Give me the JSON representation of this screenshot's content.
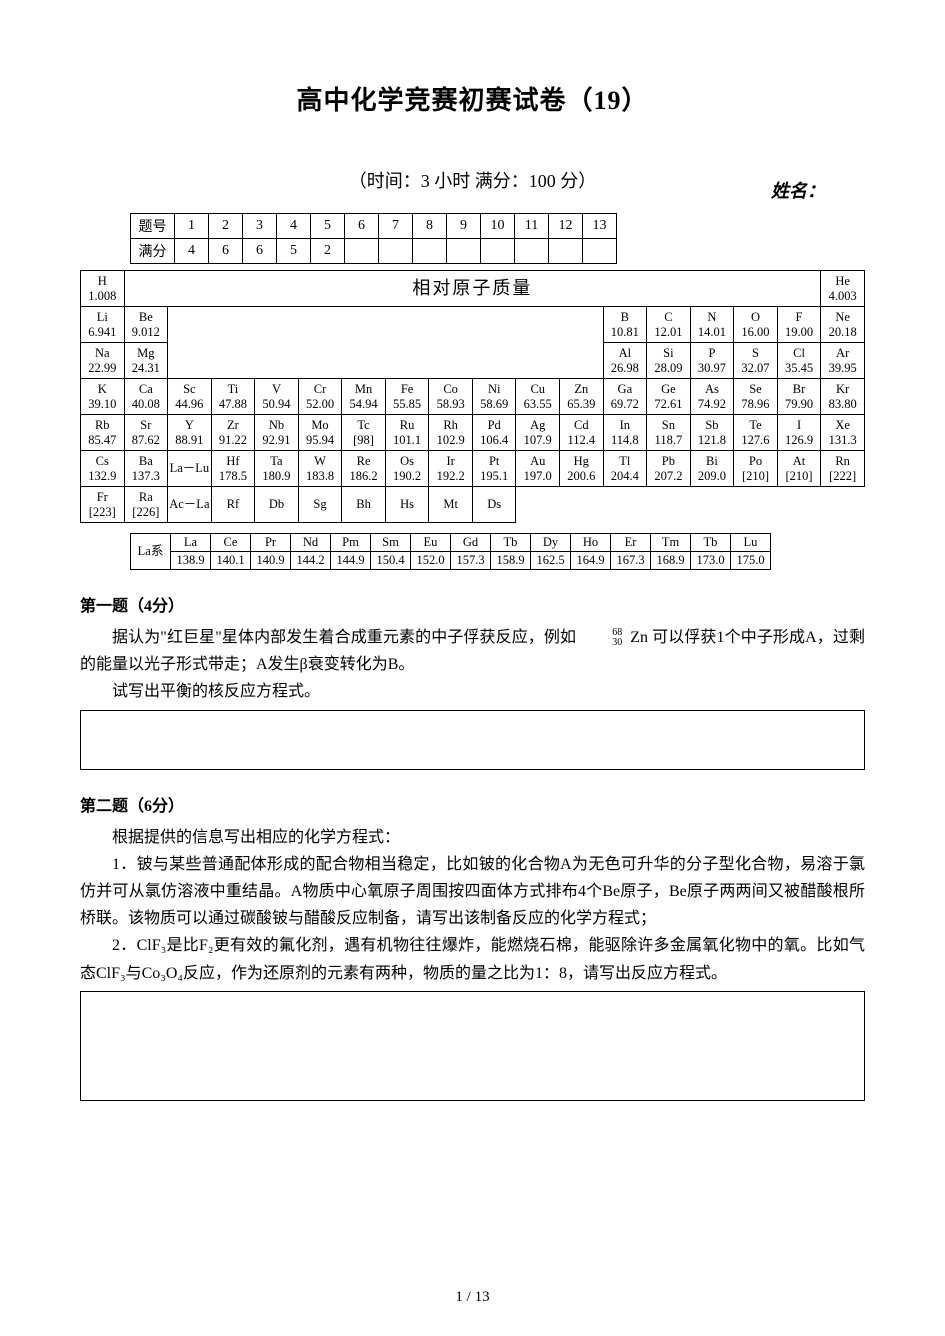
{
  "title": "高中化学竞赛初赛试卷（19）",
  "subtitle": "（时间：3 小时  满分：100 分）",
  "name_label": "姓名：",
  "score_table": {
    "row1_label": "题号",
    "row2_label": "满分",
    "nums": [
      "1",
      "2",
      "3",
      "4",
      "5",
      "6",
      "7",
      "8",
      "9",
      "10",
      "11",
      "12",
      "13"
    ],
    "vals": [
      "4",
      "6",
      "6",
      "5",
      "2",
      "",
      "",
      "",
      "",
      "",
      "",
      "",
      ""
    ]
  },
  "pt_title": "相对原子质量",
  "periodic": {
    "row1": [
      {
        "sym": "H",
        "mass": "1.008"
      },
      null,
      null,
      null,
      null,
      null,
      null,
      null,
      null,
      null,
      null,
      null,
      null,
      null,
      null,
      null,
      null,
      {
        "sym": "He",
        "mass": "4.003"
      }
    ],
    "row2": [
      {
        "sym": "Li",
        "mass": "6.941"
      },
      {
        "sym": "Be",
        "mass": "9.012"
      },
      null,
      null,
      null,
      null,
      null,
      null,
      null,
      null,
      null,
      null,
      {
        "sym": "B",
        "mass": "10.81"
      },
      {
        "sym": "C",
        "mass": "12.01"
      },
      {
        "sym": "N",
        "mass": "14.01"
      },
      {
        "sym": "O",
        "mass": "16.00"
      },
      {
        "sym": "F",
        "mass": "19.00"
      },
      {
        "sym": "Ne",
        "mass": "20.18"
      }
    ],
    "row3": [
      {
        "sym": "Na",
        "mass": "22.99"
      },
      {
        "sym": "Mg",
        "mass": "24.31"
      },
      null,
      null,
      null,
      null,
      null,
      null,
      null,
      null,
      null,
      null,
      {
        "sym": "Al",
        "mass": "26.98"
      },
      {
        "sym": "Si",
        "mass": "28.09"
      },
      {
        "sym": "P",
        "mass": "30.97"
      },
      {
        "sym": "S",
        "mass": "32.07"
      },
      {
        "sym": "Cl",
        "mass": "35.45"
      },
      {
        "sym": "Ar",
        "mass": "39.95"
      }
    ],
    "row4": [
      {
        "sym": "K",
        "mass": "39.10"
      },
      {
        "sym": "Ca",
        "mass": "40.08"
      },
      {
        "sym": "Sc",
        "mass": "44.96"
      },
      {
        "sym": "Ti",
        "mass": "47.88"
      },
      {
        "sym": "V",
        "mass": "50.94"
      },
      {
        "sym": "Cr",
        "mass": "52.00"
      },
      {
        "sym": "Mn",
        "mass": "54.94"
      },
      {
        "sym": "Fe",
        "mass": "55.85"
      },
      {
        "sym": "Co",
        "mass": "58.93"
      },
      {
        "sym": "Ni",
        "mass": "58.69"
      },
      {
        "sym": "Cu",
        "mass": "63.55"
      },
      {
        "sym": "Zn",
        "mass": "65.39"
      },
      {
        "sym": "Ga",
        "mass": "69.72"
      },
      {
        "sym": "Ge",
        "mass": "72.61"
      },
      {
        "sym": "As",
        "mass": "74.92"
      },
      {
        "sym": "Se",
        "mass": "78.96"
      },
      {
        "sym": "Br",
        "mass": "79.90"
      },
      {
        "sym": "Kr",
        "mass": "83.80"
      }
    ],
    "row5": [
      {
        "sym": "Rb",
        "mass": "85.47"
      },
      {
        "sym": "Sr",
        "mass": "87.62"
      },
      {
        "sym": "Y",
        "mass": "88.91"
      },
      {
        "sym": "Zr",
        "mass": "91.22"
      },
      {
        "sym": "Nb",
        "mass": "92.91"
      },
      {
        "sym": "Mo",
        "mass": "95.94"
      },
      {
        "sym": "Tc",
        "mass": "[98]"
      },
      {
        "sym": "Ru",
        "mass": "101.1"
      },
      {
        "sym": "Rh",
        "mass": "102.9"
      },
      {
        "sym": "Pd",
        "mass": "106.4"
      },
      {
        "sym": "Ag",
        "mass": "107.9"
      },
      {
        "sym": "Cd",
        "mass": "112.4"
      },
      {
        "sym": "In",
        "mass": "114.8"
      },
      {
        "sym": "Sn",
        "mass": "118.7"
      },
      {
        "sym": "Sb",
        "mass": "121.8"
      },
      {
        "sym": "Te",
        "mass": "127.6"
      },
      {
        "sym": "I",
        "mass": "126.9"
      },
      {
        "sym": "Xe",
        "mass": "131.3"
      }
    ],
    "row6": [
      {
        "sym": "Cs",
        "mass": "132.9"
      },
      {
        "sym": "Ba",
        "mass": "137.3"
      },
      {
        "sym": "La－Lu",
        "mass": ""
      },
      {
        "sym": "Hf",
        "mass": "178.5"
      },
      {
        "sym": "Ta",
        "mass": "180.9"
      },
      {
        "sym": "W",
        "mass": "183.8"
      },
      {
        "sym": "Re",
        "mass": "186.2"
      },
      {
        "sym": "Os",
        "mass": "190.2"
      },
      {
        "sym": "Ir",
        "mass": "192.2"
      },
      {
        "sym": "Pt",
        "mass": "195.1"
      },
      {
        "sym": "Au",
        "mass": "197.0"
      },
      {
        "sym": "Hg",
        "mass": "200.6"
      },
      {
        "sym": "Tl",
        "mass": "204.4"
      },
      {
        "sym": "Pb",
        "mass": "207.2"
      },
      {
        "sym": "Bi",
        "mass": "209.0"
      },
      {
        "sym": "Po",
        "mass": "[210]"
      },
      {
        "sym": "At",
        "mass": "[210]"
      },
      {
        "sym": "Rn",
        "mass": "[222]"
      }
    ],
    "row7": [
      {
        "sym": "Fr",
        "mass": "[223]"
      },
      {
        "sym": "Ra",
        "mass": "[226]"
      },
      {
        "sym": "Ac－La",
        "mass": ""
      },
      {
        "sym": "Rf",
        "mass": ""
      },
      {
        "sym": "Db",
        "mass": ""
      },
      {
        "sym": "Sg",
        "mass": ""
      },
      {
        "sym": "Bh",
        "mass": ""
      },
      {
        "sym": "Hs",
        "mass": ""
      },
      {
        "sym": "Mt",
        "mass": ""
      },
      {
        "sym": "Ds",
        "mass": ""
      },
      null,
      null,
      null,
      null,
      null,
      null,
      null,
      null
    ]
  },
  "lanth": {
    "label": "La系",
    "syms": [
      "La",
      "Ce",
      "Pr",
      "Nd",
      "Pm",
      "Sm",
      "Eu",
      "Gd",
      "Tb",
      "Dy",
      "Ho",
      "Er",
      "Tm",
      "Tb",
      "Lu"
    ],
    "masses": [
      "138.9",
      "140.1",
      "140.9",
      "144.2",
      "144.9",
      "150.4",
      "152.0",
      "157.3",
      "158.9",
      "162.5",
      "164.9",
      "167.3",
      "168.9",
      "173.0",
      "175.0"
    ]
  },
  "q1": {
    "head": "第一题（4分）",
    "p1a": "据认为\"红巨星\"星体内部发生着合成重元素的中子俘获反应，例如 ",
    "iso_top": "68",
    "iso_bot": "30",
    "iso_sym": "Zn",
    "p1b": "可以俘获1个中子形成A，过剩的能量以光子形式带走；A发生β衰变转化为B。",
    "p2": "试写出平衡的核反应方程式。"
  },
  "q2": {
    "head": "第二题（6分）",
    "intro": "根据提供的信息写出相应的化学方程式：",
    "p1": "1．铍与某些普通配体形成的配合物相当稳定，比如铍的化合物A为无色可升华的分子型化合物，易溶于氯仿并可从氯仿溶液中重结晶。A物质中心氧原子周围按四面体方式排布4个Be原子，Be原子两两间又被醋酸根所桥联。该物质可以通过碳酸铍与醋酸反应制备，请写出该制备反应的化学方程式；",
    "p2": "2．ClF₃是比F₂更有效的氟化剂，遇有机物往往爆炸，能燃烧石棉，能驱除许多金属氧化物中的氧。比如气态ClF₃与Co₃O₄反应，作为还原剂的元素有两种，物质的量之比为1：8，请写出反应方程式。"
  },
  "page_num": "1 / 13"
}
